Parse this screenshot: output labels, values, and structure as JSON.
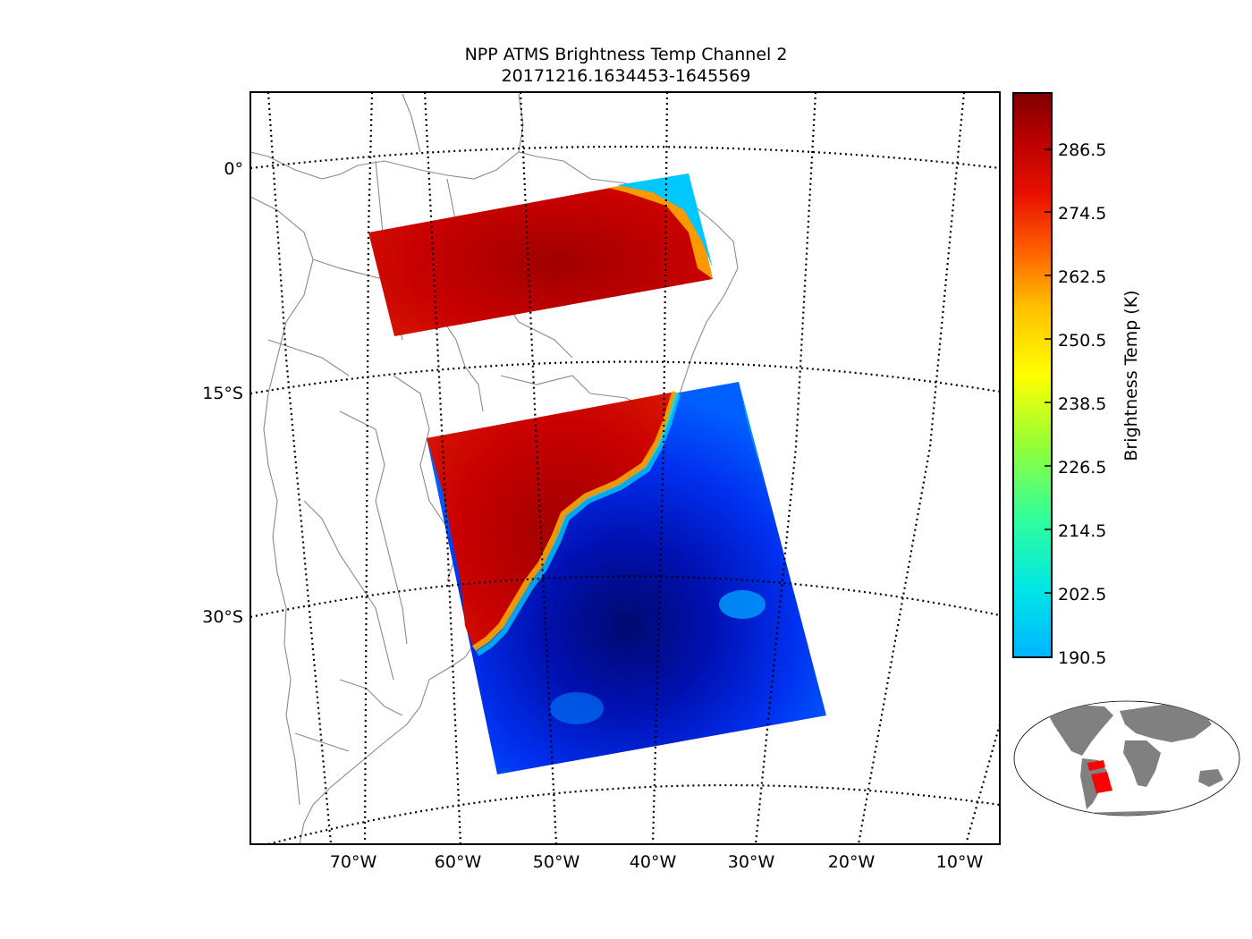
{
  "map": {
    "title_line1": "NPP ATMS Brightness Temp Channel 2",
    "title_line2": "20171216.1634453-1645569",
    "lat_labels": [
      "0°",
      "15°S",
      "30°S"
    ],
    "lon_labels": [
      "70°W",
      "60°W",
      "50°W",
      "40°W",
      "30°W",
      "20°W",
      "10°W"
    ]
  },
  "colorbar": {
    "label": "Brightness Temp (K)",
    "ticks": [
      "286.5",
      "274.5",
      "262.5",
      "250.5",
      "238.5",
      "226.5",
      "214.5",
      "202.5",
      "190.5"
    ],
    "min": 190.5,
    "max": 296.0
  },
  "inset": {
    "land_color": "#808080",
    "swath_color": "#ff0000"
  },
  "colors": {
    "hot": "#b30000",
    "warm": "#d91a00",
    "ocean": "#0020e0",
    "ocean_dark": "#000a70",
    "cold_edge": "#00c8ff"
  }
}
